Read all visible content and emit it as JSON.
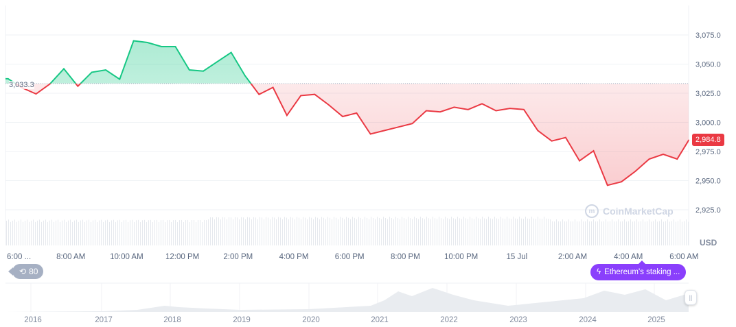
{
  "chart_data": {
    "type": "line",
    "currency": "USD",
    "baseline": 3033.3,
    "baseline_label": "3,033.3",
    "last_price": 2984.8,
    "last_price_label": "2,984.8",
    "ylim": [
      2915,
      3100
    ],
    "y_ticks": [
      "3,075.0",
      "3,050.0",
      "3,025.0",
      "3,000.0",
      "2,975.0",
      "2,950.0",
      "2,925.0"
    ],
    "y_tick_values": [
      3075,
      3050,
      3025,
      3000,
      2975,
      2950,
      2925
    ],
    "x_ticks": [
      "6:00 ...",
      "8:00 AM",
      "10:00 AM",
      "12:00 PM",
      "2:00 PM",
      "4:00 PM",
      "6:00 PM",
      "8:00 PM",
      "10:00 PM",
      "15 Jul",
      "2:00 AM",
      "4:00 AM",
      "6:00 AM"
    ],
    "x_tick_hours": [
      6,
      8,
      10,
      12,
      14,
      16,
      18,
      20,
      22,
      24,
      26,
      28,
      30
    ],
    "x_hours_range": [
      5.66,
      30.17
    ],
    "series": [
      {
        "x_hours": [
          5.75,
          6.25,
          6.75,
          7.25,
          7.75,
          8.25,
          8.75,
          9.25,
          9.75,
          10.25,
          10.75,
          11.25,
          11.75,
          12.25,
          12.75,
          13.25,
          13.75,
          14.25,
          14.75,
          15.25,
          15.75,
          16.25,
          16.75,
          17.25,
          17.75,
          18.25,
          18.75,
          19.25,
          19.75,
          20.25,
          20.75,
          21.25,
          21.75,
          22.25,
          22.75,
          23.25,
          23.75,
          24.25,
          24.75,
          25.25,
          25.75,
          26.25,
          26.75,
          27.25,
          27.75,
          28.25,
          28.75,
          29.25,
          29.75,
          30.17
        ],
        "values": [
          3037.4,
          3029.7,
          3024.4,
          3033,
          3046,
          3031,
          3043,
          3045,
          3037,
          3070,
          3068.5,
          3065,
          3065,
          3045,
          3044,
          3052,
          3060,
          3040,
          3024,
          3030,
          3006,
          3023,
          3024,
          3015,
          3005,
          3008,
          2990,
          2993,
          2996,
          2999,
          3010,
          3009,
          3013,
          3011,
          3016,
          3010,
          3012,
          3011,
          2993,
          2984,
          2987,
          2967,
          2975.6,
          2946,
          2949,
          2958,
          2968.5,
          2972.6,
          2968.5,
          2984.8
        ]
      }
    ],
    "colors": {
      "up": "#16c784",
      "down": "#ea3943",
      "news": "#8a3ffc"
    },
    "grid": true,
    "navigator_years": [
      "2016",
      "2017",
      "2018",
      "2019",
      "2020",
      "2021",
      "2022",
      "2023",
      "2024",
      "2025"
    ]
  },
  "unit_label": "USD",
  "history_badge": {
    "icon": "history-icon",
    "count": "80"
  },
  "news_badge": {
    "icon": "lightning-icon",
    "text": "Ethereum's staking ..."
  },
  "watermark": "CoinMarketCap"
}
